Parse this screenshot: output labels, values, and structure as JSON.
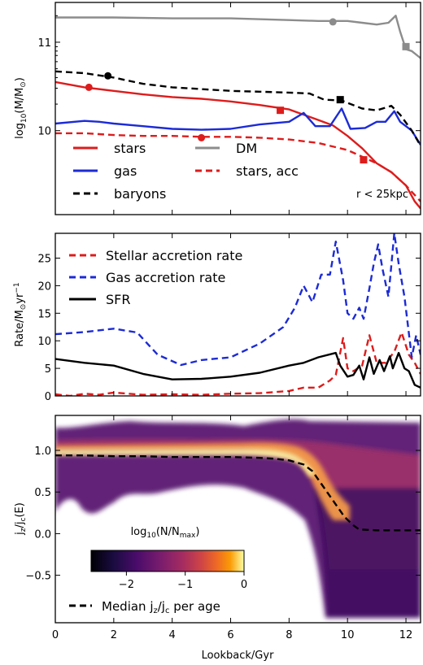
{
  "chart_data": [
    {
      "type": "line",
      "panel": "top",
      "ylabel": "log₁₀(M/M⊙)",
      "xlim": [
        0,
        12.5
      ],
      "ylim": [
        9.05,
        11.45
      ],
      "yticks": [
        10,
        11
      ],
      "ytick_labels": [
        "10",
        "11"
      ],
      "xtick_labels_shown": false,
      "annotation": "r < 25kpc",
      "legend_position": "bottom-left, two columns",
      "series": [
        {
          "name": "stars",
          "color": "#dd1c1c",
          "style": "solid",
          "points": [
            [
              0,
              10.55
            ],
            [
              1,
              10.49
            ],
            [
              2,
              10.45
            ],
            [
              3,
              10.41
            ],
            [
              4,
              10.38
            ],
            [
              5,
              10.36
            ],
            [
              6,
              10.33
            ],
            [
              7,
              10.29
            ],
            [
              8,
              10.24
            ],
            [
              9,
              10.12
            ],
            [
              9.5,
              10.06
            ],
            [
              10,
              9.94
            ],
            [
              10.5,
              9.8
            ],
            [
              11,
              9.63
            ],
            [
              11.5,
              9.53
            ],
            [
              12,
              9.38
            ],
            [
              12.3,
              9.2
            ],
            [
              12.5,
              9.12
            ]
          ]
        },
        {
          "name": "gas",
          "color": "#1c2bd6",
          "style": "solid",
          "points": [
            [
              0,
              10.08
            ],
            [
              1,
              10.11
            ],
            [
              1.5,
              10.1
            ],
            [
              2,
              10.08
            ],
            [
              3,
              10.05
            ],
            [
              4,
              10.02
            ],
            [
              5,
              10.01
            ],
            [
              6,
              10.02
            ],
            [
              7,
              10.07
            ],
            [
              8,
              10.1
            ],
            [
              8.5,
              10.2
            ],
            [
              8.9,
              10.05
            ],
            [
              9.4,
              10.05
            ],
            [
              9.8,
              10.25
            ],
            [
              10.1,
              10.02
            ],
            [
              10.6,
              10.03
            ],
            [
              11.0,
              10.1
            ],
            [
              11.3,
              10.1
            ],
            [
              11.6,
              10.22
            ],
            [
              11.8,
              10.1
            ],
            [
              12.2,
              10.0
            ],
            [
              12.5,
              9.84
            ]
          ]
        },
        {
          "name": "baryons",
          "color": "#000000",
          "style": "dashed",
          "points": [
            [
              0,
              10.67
            ],
            [
              1,
              10.65
            ],
            [
              2,
              10.6
            ],
            [
              3,
              10.53
            ],
            [
              4,
              10.49
            ],
            [
              5,
              10.47
            ],
            [
              6,
              10.45
            ],
            [
              7,
              10.44
            ],
            [
              8,
              10.43
            ],
            [
              8.7,
              10.42
            ],
            [
              9.2,
              10.35
            ],
            [
              9.8,
              10.34
            ],
            [
              10.5,
              10.25
            ],
            [
              11,
              10.23
            ],
            [
              11.5,
              10.28
            ],
            [
              11.8,
              10.18
            ],
            [
              12.2,
              10.0
            ],
            [
              12.5,
              9.83
            ]
          ]
        },
        {
          "name": "DM",
          "color": "#8c8c8c",
          "style": "solid",
          "points": [
            [
              0,
              11.28
            ],
            [
              2,
              11.28
            ],
            [
              4,
              11.27
            ],
            [
              6,
              11.27
            ],
            [
              8,
              11.25
            ],
            [
              9,
              11.24
            ],
            [
              9.5,
              11.24
            ],
            [
              10,
              11.24
            ],
            [
              10.5,
              11.22
            ],
            [
              11,
              11.2
            ],
            [
              11.4,
              11.22
            ],
            [
              11.65,
              11.3
            ],
            [
              11.8,
              11.12
            ],
            [
              12,
              10.92
            ],
            [
              12.2,
              10.9
            ],
            [
              12.5,
              10.82
            ]
          ]
        },
        {
          "name": "stars, acc",
          "color": "#dd1c1c",
          "style": "dashed",
          "points": [
            [
              0,
              9.97
            ],
            [
              1,
              9.97
            ],
            [
              2,
              9.95
            ],
            [
              3,
              9.94
            ],
            [
              4,
              9.94
            ],
            [
              5,
              9.93
            ],
            [
              6,
              9.93
            ],
            [
              7,
              9.92
            ],
            [
              8,
              9.9
            ],
            [
              9,
              9.86
            ],
            [
              10,
              9.78
            ],
            [
              11,
              9.63
            ],
            [
              11.5,
              9.53
            ],
            [
              12,
              9.38
            ],
            [
              12.5,
              9.2
            ]
          ]
        }
      ],
      "markers": [
        {
          "x": 1.15,
          "y": 10.49,
          "shape": "circle",
          "color": "#dd1c1c"
        },
        {
          "x": 7.7,
          "y": 10.23,
          "shape": "square",
          "color": "#dd1c1c"
        },
        {
          "x": 1.8,
          "y": 10.62,
          "shape": "circle",
          "color": "#000000"
        },
        {
          "x": 9.75,
          "y": 10.35,
          "shape": "square",
          "color": "#000000"
        },
        {
          "x": 9.5,
          "y": 11.23,
          "shape": "circle",
          "color": "#8c8c8c"
        },
        {
          "x": 12.0,
          "y": 10.95,
          "shape": "square",
          "color": "#8c8c8c"
        },
        {
          "x": 5.0,
          "y": 9.92,
          "shape": "circle",
          "color": "#dd1c1c"
        },
        {
          "x": 10.55,
          "y": 9.67,
          "shape": "square",
          "color": "#dd1c1c"
        }
      ]
    },
    {
      "type": "line",
      "panel": "middle",
      "ylabel": "Rate/M⊙yr⁻¹",
      "xlim": [
        0,
        12.5
      ],
      "ylim": [
        0,
        29.5
      ],
      "yticks": [
        0,
        5,
        10,
        15,
        20,
        25
      ],
      "ytick_labels": [
        "0",
        "5",
        "10",
        "15",
        "20",
        "25"
      ],
      "xtick_labels_shown": false,
      "legend_position": "top-left",
      "series": [
        {
          "name": "Stellar accretion rate",
          "color": "#dd1c1c",
          "style": "dashed",
          "points": [
            [
              0,
              0.3
            ],
            [
              0.5,
              0.0
            ],
            [
              1,
              0.4
            ],
            [
              1.5,
              0.2
            ],
            [
              2,
              0.6
            ],
            [
              3,
              0.2
            ],
            [
              4,
              0.3
            ],
            [
              5,
              0.2
            ],
            [
              6,
              0.4
            ],
            [
              7,
              0.5
            ],
            [
              7.5,
              0.7
            ],
            [
              8,
              0.9
            ],
            [
              8.5,
              1.5
            ],
            [
              9,
              1.5
            ],
            [
              9.4,
              2.8
            ],
            [
              9.6,
              3.8
            ],
            [
              9.85,
              10.5
            ],
            [
              10.0,
              5
            ],
            [
              10.2,
              4.5
            ],
            [
              10.5,
              5.5
            ],
            [
              10.75,
              11.0
            ],
            [
              11.0,
              6.0
            ],
            [
              11.3,
              6.0
            ],
            [
              11.6,
              8.0
            ],
            [
              11.85,
              11.5
            ],
            [
              12.1,
              7.5
            ],
            [
              12.3,
              6.0
            ],
            [
              12.5,
              4.0
            ]
          ]
        },
        {
          "name": "Gas accretion rate",
          "color": "#1c2bd6",
          "style": "dashed",
          "points": [
            [
              0,
              11.2
            ],
            [
              1,
              11.6
            ],
            [
              2,
              12.2
            ],
            [
              2.8,
              11.5
            ],
            [
              3.5,
              7.5
            ],
            [
              4.3,
              5.6
            ],
            [
              5,
              6.5
            ],
            [
              6,
              7.0
            ],
            [
              7,
              9.5
            ],
            [
              7.8,
              12.5
            ],
            [
              8.2,
              16
            ],
            [
              8.5,
              20
            ],
            [
              8.8,
              17
            ],
            [
              9.1,
              22
            ],
            [
              9.4,
              22
            ],
            [
              9.6,
              28
            ],
            [
              9.85,
              21
            ],
            [
              10.0,
              15
            ],
            [
              10.2,
              14
            ],
            [
              10.4,
              16
            ],
            [
              10.55,
              14
            ],
            [
              10.75,
              19.5
            ],
            [
              10.9,
              24
            ],
            [
              11.05,
              27.5
            ],
            [
              11.2,
              23
            ],
            [
              11.4,
              18
            ],
            [
              11.6,
              29.5
            ],
            [
              11.75,
              24
            ],
            [
              11.95,
              18
            ],
            [
              12.2,
              7
            ],
            [
              12.35,
              11
            ],
            [
              12.5,
              7.5
            ]
          ]
        },
        {
          "name": "SFR",
          "color": "#000000",
          "style": "solid",
          "points": [
            [
              0,
              6.7
            ],
            [
              1,
              6.0
            ],
            [
              2,
              5.5
            ],
            [
              3,
              4.0
            ],
            [
              4,
              3.0
            ],
            [
              5,
              3.1
            ],
            [
              6,
              3.5
            ],
            [
              7,
              4.2
            ],
            [
              8,
              5.5
            ],
            [
              8.5,
              6.0
            ],
            [
              9,
              7.0
            ],
            [
              9.6,
              7.8
            ],
            [
              9.75,
              5.5
            ],
            [
              10,
              3.5
            ],
            [
              10.2,
              3.8
            ],
            [
              10.4,
              5.5
            ],
            [
              10.55,
              3.0
            ],
            [
              10.75,
              7.0
            ],
            [
              10.9,
              4.0
            ],
            [
              11.1,
              6.5
            ],
            [
              11.25,
              4.5
            ],
            [
              11.45,
              7.2
            ],
            [
              11.55,
              5.0
            ],
            [
              11.75,
              7.8
            ],
            [
              11.95,
              5.0
            ],
            [
              12.1,
              4.5
            ],
            [
              12.3,
              2.0
            ],
            [
              12.5,
              1.5
            ]
          ]
        }
      ]
    },
    {
      "type": "heatmap",
      "panel": "bottom",
      "xlabel": "Lookback/Gyr",
      "ylabel": "j_z/j_c(E)",
      "xlim": [
        0,
        12.5
      ],
      "ylim": [
        -1.07,
        1.42
      ],
      "xticks": [
        0,
        2,
        4,
        6,
        8,
        10,
        12
      ],
      "xtick_labels": [
        "0",
        "2",
        "4",
        "6",
        "8",
        "10",
        "12"
      ],
      "yticks": [
        -0.5,
        0.0,
        0.5,
        1.0
      ],
      "ytick_labels": [
        "−0.5",
        "0.0",
        "0.5",
        "1.0"
      ],
      "colormap": "inferno-like (dark purple → magenta → orange → pale yellow)",
      "colorbar": {
        "label": "log₁₀(N/N_max)",
        "ticks": [
          -2,
          -1,
          0
        ],
        "tick_labels": [
          "−2",
          "−1",
          "0"
        ],
        "range": [
          -2.6,
          0
        ]
      },
      "legend_position": "bottom-left",
      "series": [
        {
          "name": "Median j_z/j_c per age",
          "color": "#000000",
          "style": "dashed",
          "points": [
            [
              0,
              0.94
            ],
            [
              1,
              0.94
            ],
            [
              2,
              0.93
            ],
            [
              3,
              0.93
            ],
            [
              4,
              0.92
            ],
            [
              5,
              0.92
            ],
            [
              6,
              0.92
            ],
            [
              7,
              0.91
            ],
            [
              7.5,
              0.9
            ],
            [
              8,
              0.88
            ],
            [
              8.5,
              0.83
            ],
            [
              8.8,
              0.75
            ],
            [
              9.1,
              0.6
            ],
            [
              9.4,
              0.45
            ],
            [
              9.7,
              0.3
            ],
            [
              9.9,
              0.2
            ],
            [
              10.2,
              0.1
            ],
            [
              10.4,
              0.05
            ],
            [
              11,
              0.04
            ],
            [
              12,
              0.04
            ],
            [
              12.5,
              0.04
            ]
          ]
        }
      ]
    }
  ],
  "labels": {
    "top_ylabel_main": "log",
    "top_ylabel_sub": "10",
    "top_ylabel_rest": "(M/M",
    "top_ylabel_sun": "⊙",
    "top_ylabel_close": ")",
    "mid_ylabel_main": "Rate/M",
    "mid_ylabel_sun": "⊙",
    "mid_ylabel_rest": "yr",
    "mid_ylabel_sup": "−1",
    "bot_ylabel_a": "j",
    "bot_ylabel_a_sub": "z",
    "bot_ylabel_b": "/j",
    "bot_ylabel_b_sub": "c",
    "bot_ylabel_c": "(E)",
    "xlabel": "Lookback/Gyr",
    "annotation": "r < 25kpc",
    "cb_label_main": "log",
    "cb_label_sub": "10",
    "cb_label_rest": "(N/N",
    "cb_label_max": "max",
    "cb_label_close": ")",
    "median_label_a": "Median j",
    "median_label_a_sub": "z",
    "median_label_b": "/j",
    "median_label_b_sub": "c",
    "median_label_c": " per age"
  }
}
